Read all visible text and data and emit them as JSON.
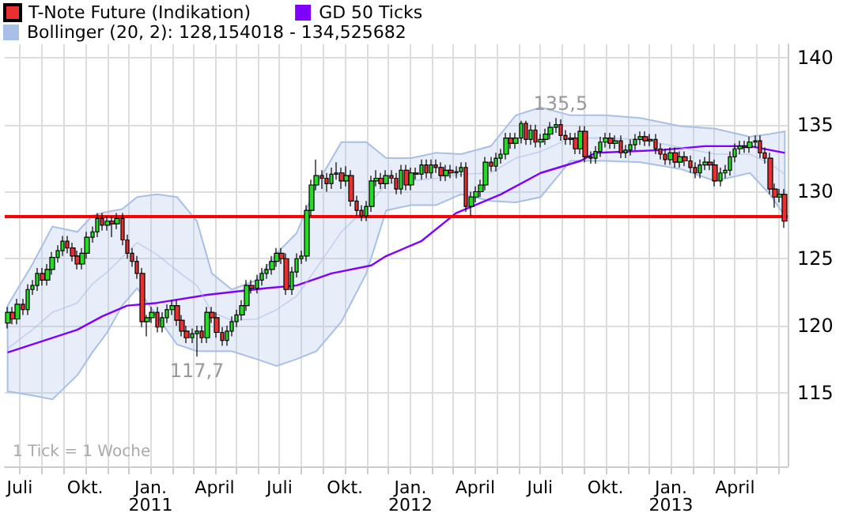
{
  "chart_data": {
    "type": "candlestick",
    "x": [
      "2010-06-14",
      "2010-06-21",
      "2010-06-28",
      "2010-07-05",
      "2010-07-12",
      "2010-07-19",
      "2010-07-26",
      "2010-08-02",
      "2010-08-09",
      "2010-08-16",
      "2010-08-23",
      "2010-08-30",
      "2010-09-06",
      "2010-09-13",
      "2010-09-20",
      "2010-09-27",
      "2010-10-04",
      "2010-10-11",
      "2010-10-18",
      "2010-10-25",
      "2010-11-01",
      "2010-11-08",
      "2010-11-15",
      "2010-11-22",
      "2010-11-29",
      "2010-12-06",
      "2010-12-13",
      "2010-12-20",
      "2010-12-27",
      "2011-01-03",
      "2011-01-10",
      "2011-01-17",
      "2011-01-24",
      "2011-01-31",
      "2011-02-07",
      "2011-02-14",
      "2011-02-21",
      "2011-02-28",
      "2011-03-07",
      "2011-03-14",
      "2011-03-21",
      "2011-03-28",
      "2011-04-04",
      "2011-04-11",
      "2011-04-18",
      "2011-04-25",
      "2011-05-02",
      "2011-05-09",
      "2011-05-16",
      "2011-05-23",
      "2011-05-30",
      "2011-06-06",
      "2011-06-13",
      "2011-06-20",
      "2011-06-27",
      "2011-07-04",
      "2011-07-11",
      "2011-07-18",
      "2011-07-25",
      "2011-08-01",
      "2011-08-08",
      "2011-08-15",
      "2011-08-22",
      "2011-08-29",
      "2011-09-05",
      "2011-09-12",
      "2011-09-19",
      "2011-09-26",
      "2011-10-03",
      "2011-10-10",
      "2011-10-17",
      "2011-10-24",
      "2011-10-31",
      "2011-11-07",
      "2011-11-14",
      "2011-11-21",
      "2011-11-28",
      "2011-12-05",
      "2011-12-12",
      "2011-12-19",
      "2011-12-26",
      "2012-01-02",
      "2012-01-09",
      "2012-01-16",
      "2012-01-23",
      "2012-01-30",
      "2012-02-06",
      "2012-02-13",
      "2012-02-20",
      "2012-02-27",
      "2012-03-05",
      "2012-03-12",
      "2012-03-19",
      "2012-03-26",
      "2012-04-02",
      "2012-04-09",
      "2012-04-16",
      "2012-04-23",
      "2012-04-30",
      "2012-05-07",
      "2012-05-14",
      "2012-05-21",
      "2012-05-28",
      "2012-06-04",
      "2012-06-11",
      "2012-06-18",
      "2012-06-25",
      "2012-07-02",
      "2012-07-09",
      "2012-07-16",
      "2012-07-23",
      "2012-07-30",
      "2012-08-06",
      "2012-08-13",
      "2012-08-20",
      "2012-08-27",
      "2012-09-03",
      "2012-09-10",
      "2012-09-17",
      "2012-09-24",
      "2012-10-01",
      "2012-10-08",
      "2012-10-15",
      "2012-10-22",
      "2012-10-29",
      "2012-11-05",
      "2012-11-12",
      "2012-11-19",
      "2012-11-26",
      "2012-12-03",
      "2012-12-10",
      "2012-12-17",
      "2012-12-24",
      "2012-12-31",
      "2013-01-07",
      "2013-01-14",
      "2013-01-21",
      "2013-01-28",
      "2013-02-04",
      "2013-02-11",
      "2013-02-18",
      "2013-02-25",
      "2013-03-04",
      "2013-03-11",
      "2013-03-18",
      "2013-03-25",
      "2013-04-01",
      "2013-04-08",
      "2013-04-15",
      "2013-04-22",
      "2013-04-29",
      "2013-05-06",
      "2013-05-13",
      "2013-05-20",
      "2013-05-27",
      "2013-06-03",
      "2013-06-10"
    ],
    "series": [
      {
        "type": "line",
        "name": "GD 50 Ticks",
        "color": "#8000ff",
        "x": [
          "2010-06-14",
          "2010-09-20",
          "2010-10-25",
          "2010-11-29",
          "2011-01-10",
          "2011-03-21",
          "2011-06-13",
          "2011-07-25",
          "2011-09-12",
          "2011-11-07",
          "2011-11-28",
          "2012-01-16",
          "2012-03-05",
          "2012-05-07",
          "2012-07-02",
          "2012-08-27",
          "2012-09-17",
          "2012-12-17",
          "2013-02-18",
          "2013-04-22",
          "2013-06-10"
        ],
        "values": [
          118.0,
          119.7,
          120.7,
          121.5,
          121.7,
          122.3,
          122.8,
          123.0,
          123.9,
          124.5,
          125.2,
          126.3,
          128.4,
          129.8,
          131.4,
          132.3,
          132.9,
          133.1,
          133.4,
          133.4,
          132.9
        ]
      },
      {
        "type": "line",
        "name": "Bollinger (20, 2): 128,154018 - 134,525682",
        "color": "#a8c0e8",
        "x": [
          "2010-06-14",
          "2010-07-19",
          "2010-08-16",
          "2010-09-20",
          "2010-10-11",
          "2010-11-01",
          "2010-11-22",
          "2010-12-13",
          "2011-01-10",
          "2011-02-07",
          "2011-03-07",
          "2011-03-28",
          "2011-04-25",
          "2011-05-30",
          "2011-06-27",
          "2011-07-25",
          "2011-08-22",
          "2011-09-26",
          "2011-10-31",
          "2011-11-28",
          "2012-01-02",
          "2012-02-06",
          "2012-03-12",
          "2012-04-23",
          "2012-05-28",
          "2012-07-02",
          "2012-08-13",
          "2012-10-01",
          "2012-11-19",
          "2013-01-14",
          "2013-03-04",
          "2013-04-22",
          "2013-05-20",
          "2013-06-10"
        ],
        "values": [
          118.3,
          119.7,
          121.0,
          121.7,
          123.1,
          124.0,
          125.1,
          126.2,
          125.3,
          124.1,
          123.0,
          121.0,
          120.4,
          120.5,
          121.2,
          122.2,
          124.3,
          127.0,
          128.8,
          130.6,
          130.8,
          131.0,
          131.3,
          131.4,
          132.5,
          133.0,
          134.0,
          134.0,
          133.9,
          133.3,
          132.8,
          132.8,
          132.1,
          131.3
        ],
        "upper": [
          121.5,
          124.6,
          127.4,
          127.0,
          128.2,
          128.5,
          128.7,
          129.6,
          129.8,
          129.6,
          127.8,
          123.9,
          122.7,
          123.4,
          125.4,
          126.9,
          130.5,
          133.7,
          133.7,
          132.5,
          132.5,
          132.9,
          132.8,
          133.4,
          135.7,
          136.3,
          135.7,
          135.7,
          135.5,
          134.9,
          134.7,
          134.1,
          134.3,
          134.5
        ],
        "lower": [
          115.1,
          114.8,
          114.5,
          116.3,
          118.0,
          119.5,
          121.5,
          122.8,
          120.7,
          118.6,
          118.1,
          118.1,
          118.1,
          117.5,
          117.0,
          117.5,
          118.1,
          120.3,
          123.9,
          128.6,
          129.0,
          129.0,
          129.8,
          129.3,
          129.2,
          129.6,
          132.3,
          132.3,
          132.2,
          131.7,
          130.8,
          131.4,
          129.8,
          128.2
        ]
      },
      {
        "name": "T-Note Future (Indikation)",
        "color": "#e83030",
        "colors": [
          "#22dd22",
          "#e83030",
          "#22dd22",
          "#e83030",
          "#22dd22",
          "#22dd22",
          "#22dd22",
          "#e83030",
          "#22dd22",
          "#22dd22",
          "#22dd22",
          "#22dd22",
          "#e83030",
          "#e83030",
          "#e83030",
          "#22dd22",
          "#22dd22",
          "#22dd22",
          "#22dd22",
          "#e83030",
          "#22dd22",
          "#e83030",
          "#22dd22",
          "#e83030",
          "#e83030",
          "#e83030",
          "#e83030",
          "#e83030",
          "#22dd22",
          "#22dd22",
          "#e83030",
          "#22dd22",
          "#22dd22",
          "#22dd22",
          "#e83030",
          "#e83030",
          "#e83030",
          "#22dd22",
          "#22dd22",
          "#e83030",
          "#22dd22",
          "#e83030",
          "#e83030",
          "#e83030",
          "#22dd22",
          "#22dd22",
          "#22dd22",
          "#22dd22",
          "#22dd22",
          "#e83030",
          "#22dd22",
          "#22dd22",
          "#22dd22",
          "#22dd22",
          "#22dd22",
          "#e83030",
          "#e83030",
          "#22dd22",
          "#22dd22",
          "#22dd22",
          "#22dd22",
          "#22dd22",
          "#22dd22",
          "#e83030",
          "#e83030",
          "#22dd22",
          "#22dd22",
          "#e83030",
          "#22dd22",
          "#e83030",
          "#e83030",
          "#e83030",
          "#22dd22",
          "#22dd22",
          "#22dd22",
          "#e83030",
          "#22dd22",
          "#e83030",
          "#e83030",
          "#22dd22",
          "#e83030",
          "#22dd22",
          "#e83030",
          "#22dd22",
          "#e83030",
          "#22dd22",
          "#e83030",
          "#e83030",
          "#22dd22",
          "#e83030",
          "#22dd22",
          "#22dd22",
          "#e83030",
          "#22dd22",
          "#22dd22",
          "#22dd22",
          "#22dd22",
          "#e83030",
          "#22dd22",
          "#22dd22",
          "#22dd22",
          "#e83030",
          "#22dd22",
          "#22dd22",
          "#e83030",
          "#22dd22",
          "#e83030",
          "#22dd22",
          "#22dd22",
          "#22dd22",
          "#22dd22",
          "#e83030",
          "#e83030",
          "#22dd22",
          "#e83030",
          "#22dd22",
          "#e83030",
          "#e83030",
          "#22dd22",
          "#22dd22",
          "#22dd22",
          "#e83030",
          "#22dd22",
          "#e83030",
          "#22dd22",
          "#22dd22",
          "#22dd22",
          "#22dd22",
          "#e83030",
          "#22dd22",
          "#e83030",
          "#e83030",
          "#e83030",
          "#22dd22",
          "#e83030",
          "#22dd22",
          "#e83030",
          "#e83030",
          "#e83030",
          "#22dd22",
          "#22dd22",
          "#e83030",
          "#e83030",
          "#22dd22",
          "#22dd22",
          "#22dd22",
          "#22dd22",
          "#22dd22",
          "#e83030",
          "#22dd22",
          "#22dd22",
          "#e83030",
          "#e83030",
          "#e83030",
          "#e83030",
          "#22dd22",
          "#e83030"
        ],
        "ohlc": [
          [
            120.2,
            121.4,
            119.8,
            121.0
          ],
          [
            121.0,
            121.4,
            120.1,
            120.5
          ],
          [
            120.5,
            122.0,
            120.1,
            121.6
          ],
          [
            121.6,
            122.0,
            120.8,
            121.2
          ],
          [
            121.2,
            123.1,
            120.8,
            122.7
          ],
          [
            122.7,
            123.4,
            122.3,
            123.0
          ],
          [
            123.0,
            124.3,
            122.6,
            123.9
          ],
          [
            123.9,
            124.3,
            123.0,
            123.4
          ],
          [
            123.4,
            124.6,
            123.0,
            124.2
          ],
          [
            124.2,
            125.5,
            123.8,
            125.1
          ],
          [
            125.1,
            126.0,
            124.7,
            125.6
          ],
          [
            125.6,
            126.7,
            125.2,
            126.3
          ],
          [
            126.3,
            126.7,
            125.4,
            125.8
          ],
          [
            125.8,
            126.2,
            124.8,
            125.2
          ],
          [
            125.2,
            125.6,
            124.2,
            124.6
          ],
          [
            124.6,
            125.8,
            124.2,
            125.4
          ],
          [
            125.4,
            127.0,
            125.0,
            126.6
          ],
          [
            126.6,
            127.4,
            126.2,
            127.0
          ],
          [
            127.0,
            128.4,
            126.6,
            128.0
          ],
          [
            128.0,
            128.4,
            127.1,
            127.5
          ],
          [
            127.5,
            128.2,
            127.1,
            127.8
          ],
          [
            127.8,
            128.2,
            126.6,
            127.6
          ],
          [
            127.6,
            128.4,
            127.2,
            128.0
          ],
          [
            128.0,
            128.4,
            126.0,
            126.4
          ],
          [
            126.4,
            126.8,
            125.0,
            125.4
          ],
          [
            125.4,
            125.8,
            124.4,
            124.8
          ],
          [
            124.8,
            125.2,
            123.5,
            123.9
          ],
          [
            123.9,
            124.3,
            119.9,
            120.3
          ],
          [
            120.3,
            120.8,
            119.2,
            120.6
          ],
          [
            120.6,
            121.4,
            120.2,
            121.0
          ],
          [
            121.0,
            121.4,
            119.5,
            119.9
          ],
          [
            119.9,
            121.0,
            119.5,
            120.6
          ],
          [
            120.6,
            121.6,
            120.2,
            121.2
          ],
          [
            121.2,
            121.9,
            120.8,
            121.5
          ],
          [
            121.5,
            121.9,
            120.0,
            120.4
          ],
          [
            120.4,
            120.8,
            119.2,
            119.6
          ],
          [
            119.6,
            120.0,
            118.7,
            119.1
          ],
          [
            119.1,
            119.8,
            118.7,
            119.4
          ],
          [
            119.4,
            120.0,
            117.7,
            119.6
          ],
          [
            119.6,
            120.0,
            118.7,
            119.1
          ],
          [
            119.1,
            121.4,
            118.7,
            121.0
          ],
          [
            121.0,
            121.4,
            120.2,
            120.6
          ],
          [
            120.6,
            121.0,
            119.1,
            119.5
          ],
          [
            119.5,
            119.9,
            118.5,
            118.9
          ],
          [
            118.9,
            120.0,
            118.5,
            119.6
          ],
          [
            119.6,
            120.7,
            119.2,
            120.3
          ],
          [
            120.3,
            121.2,
            119.9,
            120.8
          ],
          [
            120.8,
            121.9,
            120.4,
            121.5
          ],
          [
            121.5,
            123.4,
            121.1,
            123.0
          ],
          [
            123.0,
            123.4,
            122.4,
            122.8
          ],
          [
            122.8,
            123.8,
            122.4,
            123.4
          ],
          [
            123.4,
            124.3,
            123.0,
            123.9
          ],
          [
            123.9,
            124.6,
            123.5,
            124.2
          ],
          [
            124.2,
            125.2,
            123.8,
            124.8
          ],
          [
            124.8,
            125.8,
            124.4,
            125.4
          ],
          [
            125.4,
            125.8,
            124.6,
            125.0
          ],
          [
            125.0,
            125.4,
            122.3,
            122.7
          ],
          [
            122.7,
            124.4,
            122.3,
            124.0
          ],
          [
            124.0,
            125.4,
            123.6,
            125.0
          ],
          [
            125.0,
            125.6,
            124.6,
            125.2
          ],
          [
            125.2,
            129.0,
            124.8,
            128.6
          ],
          [
            128.6,
            130.9,
            128.2,
            130.5
          ],
          [
            130.5,
            132.4,
            130.1,
            131.2
          ],
          [
            131.2,
            131.6,
            130.2,
            131.0
          ],
          [
            131.0,
            131.4,
            130.0,
            130.6
          ],
          [
            130.6,
            131.8,
            130.2,
            131.3
          ],
          [
            131.3,
            132.2,
            130.9,
            131.4
          ],
          [
            131.4,
            131.8,
            130.2,
            130.8
          ],
          [
            130.8,
            131.9,
            130.4,
            131.2
          ],
          [
            131.2,
            131.6,
            128.9,
            129.3
          ],
          [
            129.3,
            129.7,
            128.2,
            128.6
          ],
          [
            128.6,
            129.0,
            127.8,
            128.2
          ],
          [
            128.2,
            129.3,
            127.8,
            128.9
          ],
          [
            128.9,
            131.2,
            128.5,
            130.8
          ],
          [
            130.8,
            131.6,
            130.4,
            131.0
          ],
          [
            131.0,
            131.4,
            130.2,
            130.6
          ],
          [
            130.6,
            131.6,
            130.2,
            131.2
          ],
          [
            131.2,
            131.6,
            130.6,
            131.0
          ],
          [
            131.0,
            131.4,
            129.8,
            130.2
          ],
          [
            130.2,
            132.0,
            129.8,
            131.6
          ],
          [
            131.6,
            132.0,
            130.1,
            130.5
          ],
          [
            130.5,
            131.8,
            130.1,
            131.4
          ],
          [
            131.4,
            131.8,
            130.9,
            131.3
          ],
          [
            131.3,
            132.4,
            130.9,
            132.0
          ],
          [
            132.0,
            132.4,
            131.0,
            131.4
          ],
          [
            131.4,
            132.4,
            131.0,
            132.0
          ],
          [
            132.0,
            132.4,
            131.4,
            131.8
          ],
          [
            131.8,
            132.2,
            130.8,
            131.2
          ],
          [
            131.2,
            132.0,
            130.8,
            131.6
          ],
          [
            131.6,
            132.0,
            131.0,
            131.4
          ],
          [
            131.4,
            131.9,
            131.0,
            131.5
          ],
          [
            131.5,
            132.2,
            131.1,
            131.8
          ],
          [
            131.8,
            132.2,
            128.5,
            128.9
          ],
          [
            128.9,
            130.0,
            128.2,
            129.6
          ],
          [
            129.6,
            130.4,
            129.2,
            130.0
          ],
          [
            130.0,
            130.9,
            129.6,
            130.5
          ],
          [
            130.5,
            132.6,
            130.1,
            132.2
          ],
          [
            132.2,
            132.6,
            131.5,
            131.9
          ],
          [
            131.9,
            132.9,
            131.5,
            132.5
          ],
          [
            132.5,
            133.2,
            132.1,
            132.8
          ],
          [
            132.8,
            134.4,
            132.4,
            134.0
          ],
          [
            134.0,
            134.4,
            133.2,
            133.6
          ],
          [
            133.6,
            134.4,
            133.2,
            134.0
          ],
          [
            134.0,
            135.3,
            133.6,
            135.1
          ],
          [
            135.1,
            135.3,
            133.5,
            133.9
          ],
          [
            133.9,
            135.0,
            133.5,
            134.6
          ],
          [
            134.6,
            135.0,
            133.3,
            133.7
          ],
          [
            133.7,
            134.3,
            133.3,
            133.9
          ],
          [
            133.9,
            134.7,
            133.5,
            134.3
          ],
          [
            134.3,
            135.2,
            133.9,
            134.8
          ],
          [
            134.8,
            135.5,
            134.4,
            135.0
          ],
          [
            135.0,
            135.4,
            133.8,
            134.2
          ],
          [
            134.2,
            134.6,
            133.5,
            133.9
          ],
          [
            133.9,
            134.4,
            133.5,
            134.0
          ],
          [
            134.0,
            134.4,
            132.8,
            133.2
          ],
          [
            133.2,
            134.9,
            132.8,
            134.5
          ],
          [
            134.5,
            134.9,
            132.2,
            132.6
          ],
          [
            132.6,
            133.0,
            132.1,
            132.5
          ],
          [
            132.5,
            133.4,
            132.1,
            133.0
          ],
          [
            133.0,
            134.1,
            132.6,
            133.7
          ],
          [
            133.7,
            134.4,
            133.3,
            134.0
          ],
          [
            134.0,
            134.4,
            133.2,
            133.6
          ],
          [
            133.6,
            134.2,
            133.2,
            133.8
          ],
          [
            133.8,
            134.2,
            132.5,
            132.9
          ],
          [
            132.9,
            133.5,
            132.5,
            133.1
          ],
          [
            133.1,
            133.9,
            132.7,
            133.5
          ],
          [
            133.5,
            134.3,
            133.1,
            133.9
          ],
          [
            133.9,
            134.5,
            133.5,
            134.1
          ],
          [
            134.1,
            134.5,
            133.4,
            133.8
          ],
          [
            133.8,
            134.3,
            133.4,
            133.9
          ],
          [
            133.9,
            134.3,
            132.8,
            133.2
          ],
          [
            133.2,
            133.6,
            132.4,
            132.8
          ],
          [
            132.8,
            133.2,
            132.0,
            132.4
          ],
          [
            132.4,
            133.3,
            132.0,
            132.9
          ],
          [
            132.9,
            133.3,
            131.8,
            132.2
          ],
          [
            132.2,
            133.0,
            131.8,
            132.6
          ],
          [
            132.6,
            133.0,
            131.9,
            132.3
          ],
          [
            132.3,
            132.7,
            131.4,
            131.8
          ],
          [
            131.8,
            132.2,
            131.0,
            131.4
          ],
          [
            131.4,
            132.4,
            131.0,
            132.0
          ],
          [
            132.0,
            132.6,
            131.6,
            132.2
          ],
          [
            132.2,
            133.0,
            131.6,
            132.0
          ],
          [
            132.0,
            132.4,
            130.4,
            130.8
          ],
          [
            130.8,
            131.8,
            130.4,
            131.4
          ],
          [
            131.4,
            132.0,
            131.0,
            131.6
          ],
          [
            131.6,
            133.0,
            131.2,
            132.6
          ],
          [
            132.6,
            133.6,
            132.2,
            133.2
          ],
          [
            133.2,
            133.8,
            132.8,
            133.4
          ],
          [
            133.4,
            133.8,
            132.9,
            133.3
          ],
          [
            133.3,
            134.1,
            132.9,
            133.7
          ],
          [
            133.7,
            134.2,
            133.3,
            133.8
          ],
          [
            133.8,
            134.2,
            132.5,
            132.9
          ],
          [
            132.9,
            133.3,
            132.1,
            132.5
          ],
          [
            132.5,
            132.9,
            129.8,
            130.2
          ],
          [
            130.2,
            130.6,
            128.8,
            129.6
          ],
          [
            129.6,
            130.2,
            129.2,
            129.8
          ],
          [
            129.8,
            130.2,
            127.3,
            127.8
          ]
        ]
      }
    ],
    "xlim": [
      "2010-06-10",
      "2013-06-14"
    ],
    "xticks": [
      {
        "value": "2010-07-01",
        "label": "Juli"
      },
      {
        "value": "2010-08-01",
        "label": null
      },
      {
        "value": "2010-09-01",
        "label": null
      },
      {
        "value": "2010-10-01",
        "label": "Okt."
      },
      {
        "value": "2010-11-01",
        "label": null
      },
      {
        "value": "2010-12-01",
        "label": null
      },
      {
        "value": "2011-01-01",
        "label": "Jan.\n2011"
      },
      {
        "value": "2011-02-01",
        "label": null
      },
      {
        "value": "2011-03-01",
        "label": null
      },
      {
        "value": "2011-04-01",
        "label": "April"
      },
      {
        "value": "2011-05-01",
        "label": null
      },
      {
        "value": "2011-06-01",
        "label": null
      },
      {
        "value": "2011-07-01",
        "label": "Juli"
      },
      {
        "value": "2011-08-01",
        "label": null
      },
      {
        "value": "2011-09-01",
        "label": null
      },
      {
        "value": "2011-10-01",
        "label": "Okt."
      },
      {
        "value": "2011-11-01",
        "label": null
      },
      {
        "value": "2011-12-01",
        "label": null
      },
      {
        "value": "2012-01-01",
        "label": "Jan.\n2012"
      },
      {
        "value": "2012-02-01",
        "label": null
      },
      {
        "value": "2012-03-01",
        "label": null
      },
      {
        "value": "2012-04-01",
        "label": "April"
      },
      {
        "value": "2012-05-01",
        "label": null
      },
      {
        "value": "2012-06-01",
        "label": null
      },
      {
        "value": "2012-07-01",
        "label": "Juli"
      },
      {
        "value": "2012-08-01",
        "label": null
      },
      {
        "value": "2012-09-01",
        "label": null
      },
      {
        "value": "2012-10-01",
        "label": "Okt."
      },
      {
        "value": "2012-11-01",
        "label": null
      },
      {
        "value": "2012-12-01",
        "label": null
      },
      {
        "value": "2013-01-01",
        "label": "Jan.\n2013"
      },
      {
        "value": "2013-02-01",
        "label": null
      },
      {
        "value": "2013-03-01",
        "label": null
      },
      {
        "value": "2013-04-01",
        "label": "April"
      },
      {
        "value": "2013-05-01",
        "label": null
      },
      {
        "value": "2013-06-01",
        "label": null
      }
    ],
    "ylim": [
      109.5,
      141
    ],
    "yticks": [
      115,
      120,
      125,
      130,
      135,
      140
    ],
    "ref_lines": [
      {
        "axis": "y",
        "value": 128.2,
        "label": null,
        "color": "#ff0000"
      }
    ],
    "annotations": [
      {
        "text": "135,5",
        "x": "2012-07-30",
        "y": 135.5
      },
      {
        "text": "117,7",
        "x": "2011-03-07",
        "y": 117.7
      },
      "1 Tick = 1 Woche"
    ],
    "grid": true,
    "legend": "top left",
    "marker": "none"
  }
}
